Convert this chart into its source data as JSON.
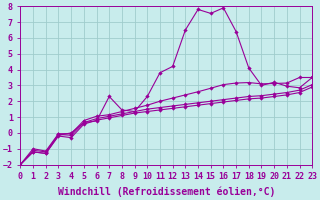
{
  "xlabel": "Windchill (Refroidissement éolien,°C)",
  "bg_color": "#c8ecec",
  "grid_color": "#a0cccc",
  "line_color": "#990099",
  "x_min": 0,
  "x_max": 23,
  "y_min": -2,
  "y_max": 8,
  "line1_x": [
    0,
    1,
    2,
    3,
    4,
    5,
    6,
    7,
    8,
    9,
    10,
    11,
    12,
    13,
    14,
    15,
    16,
    17,
    18,
    19,
    20,
    21,
    22,
    23
  ],
  "line1_y": [
    -2.0,
    -1.2,
    -1.3,
    -0.2,
    -0.3,
    0.55,
    0.8,
    0.95,
    1.1,
    1.25,
    1.35,
    1.45,
    1.55,
    1.65,
    1.75,
    1.85,
    1.95,
    2.05,
    2.15,
    2.2,
    2.3,
    2.4,
    2.55,
    2.9
  ],
  "line2_x": [
    0,
    1,
    2,
    3,
    4,
    5,
    6,
    7,
    8,
    9,
    10,
    11,
    12,
    13,
    14,
    15,
    16,
    17,
    18,
    19,
    20,
    21,
    22,
    23
  ],
  "line2_y": [
    -2.0,
    -1.1,
    -1.2,
    -0.1,
    -0.15,
    0.65,
    0.9,
    1.05,
    1.2,
    1.35,
    1.5,
    1.6,
    1.7,
    1.8,
    1.9,
    2.0,
    2.1,
    2.2,
    2.3,
    2.35,
    2.45,
    2.55,
    2.7,
    3.05
  ],
  "line3_x": [
    0,
    1,
    2,
    3,
    4,
    5,
    6,
    7,
    8,
    9,
    10,
    11,
    12,
    13,
    14,
    15,
    16,
    17,
    18,
    19,
    20,
    21,
    22,
    23
  ],
  "line3_y": [
    -2.0,
    -1.0,
    -1.15,
    -0.05,
    -0.05,
    0.78,
    1.05,
    1.15,
    1.35,
    1.55,
    1.75,
    2.0,
    2.2,
    2.4,
    2.6,
    2.82,
    3.05,
    3.15,
    3.18,
    3.1,
    3.12,
    3.15,
    3.5,
    3.5
  ],
  "line4_x": [
    0,
    1,
    2,
    3,
    4,
    5,
    6,
    7,
    8,
    9,
    10,
    11,
    12,
    13,
    14,
    15,
    16,
    17,
    18,
    19,
    20,
    21,
    22,
    23
  ],
  "line4_y": [
    -2.0,
    -1.2,
    -1.3,
    -0.15,
    0.0,
    0.65,
    0.75,
    2.3,
    1.45,
    1.35,
    2.3,
    3.8,
    4.2,
    6.5,
    7.8,
    7.55,
    7.9,
    6.4,
    4.1,
    3.0,
    3.2,
    2.95,
    2.85,
    3.5
  ],
  "xlabel_fontsize": 7.0,
  "tick_fontsize": 6.0
}
